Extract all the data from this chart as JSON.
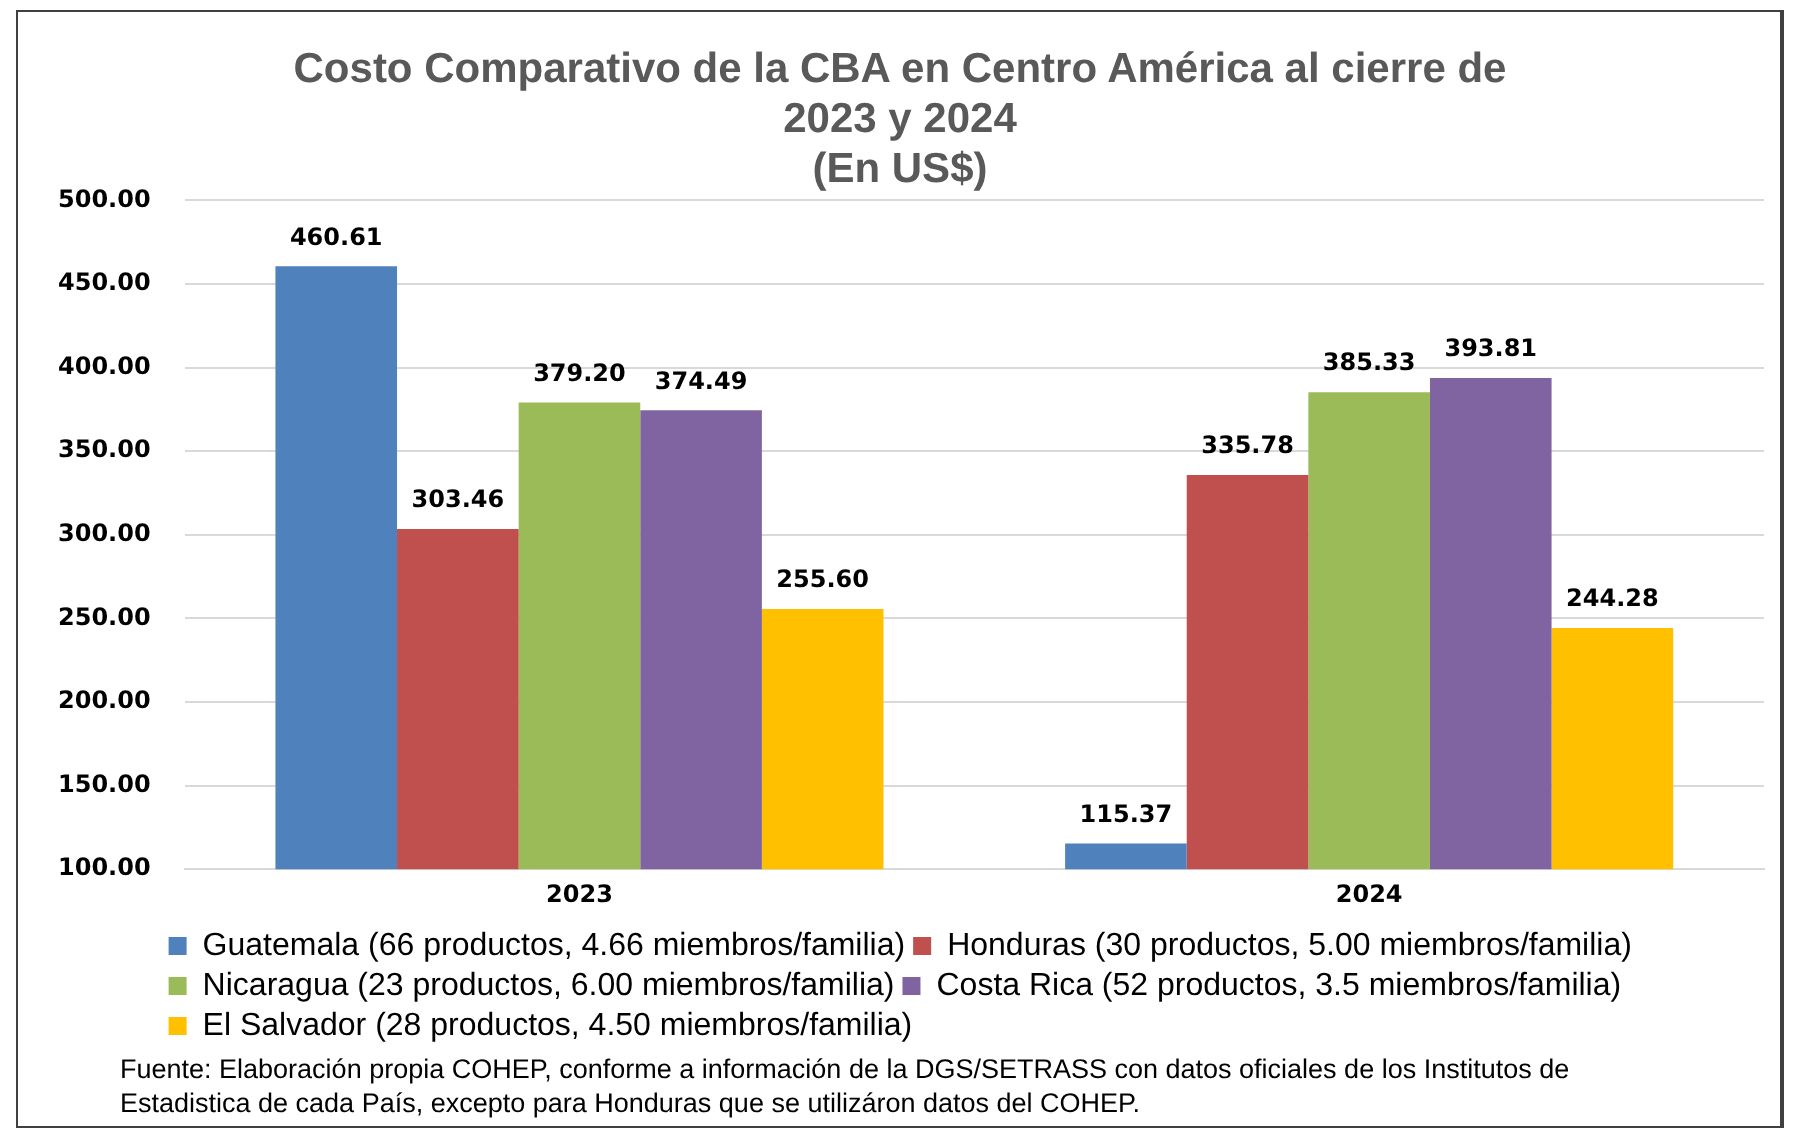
{
  "chart_data": {
    "type": "bar",
    "title": "Costo Comparativo de la CBA en Centro América al cierre de 2023 y 2024",
    "subtitle": "(En US$)",
    "categories": [
      "2023",
      "2024"
    ],
    "series": [
      {
        "name": "Guatemala (66 productos, 4.66 miembros/familia)",
        "color": "#4f81bd",
        "values": [
          460.61,
          115.37
        ],
        "value_labels": [
          "460.61",
          "115.37"
        ]
      },
      {
        "name": "Honduras (30 productos, 5.00 miembros/familia)",
        "color": "#c0504d",
        "values": [
          303.46,
          335.78
        ],
        "value_labels": [
          "303.46",
          "335.78"
        ]
      },
      {
        "name": "Nicaragua (23 productos, 6.00 miembros/familia)",
        "color": "#9bbb59",
        "values": [
          379.2,
          385.33
        ],
        "value_labels": [
          "379.20",
          "385.33"
        ]
      },
      {
        "name": "Costa Rica (52 productos, 3.5 miembros/familia)",
        "color": "#8064a2",
        "values": [
          374.49,
          393.81
        ],
        "value_labels": [
          "374.49",
          "393.81"
        ]
      },
      {
        "name": "El Salvador (28 productos, 4.50 miembros/familia)",
        "color": "#ffc000",
        "values": [
          255.6,
          244.28
        ],
        "value_labels": [
          "255.60",
          "244.28"
        ]
      }
    ],
    "ylim": [
      100,
      500
    ],
    "yticks": [
      {
        "value": 100,
        "label": "100.00"
      },
      {
        "value": 150,
        "label": "150.00"
      },
      {
        "value": 200,
        "label": "200.00"
      },
      {
        "value": 250,
        "label": "250.00"
      },
      {
        "value": 300,
        "label": "300.00"
      },
      {
        "value": 350,
        "label": "350.00"
      },
      {
        "value": 400,
        "label": "400.00"
      },
      {
        "value": 450,
        "label": "450.00"
      },
      {
        "value": 500,
        "label": "500.00"
      }
    ],
    "grid": "y",
    "legend": "bottom",
    "annotations": [
      "Fuente: Elaboración propia COHEP, conforme a información de la DGS/SETRASS con datos oficiales de los Institutos de Estadistica de cada País, excepto para Honduras que se utilizáron datos del COHEP."
    ]
  }
}
